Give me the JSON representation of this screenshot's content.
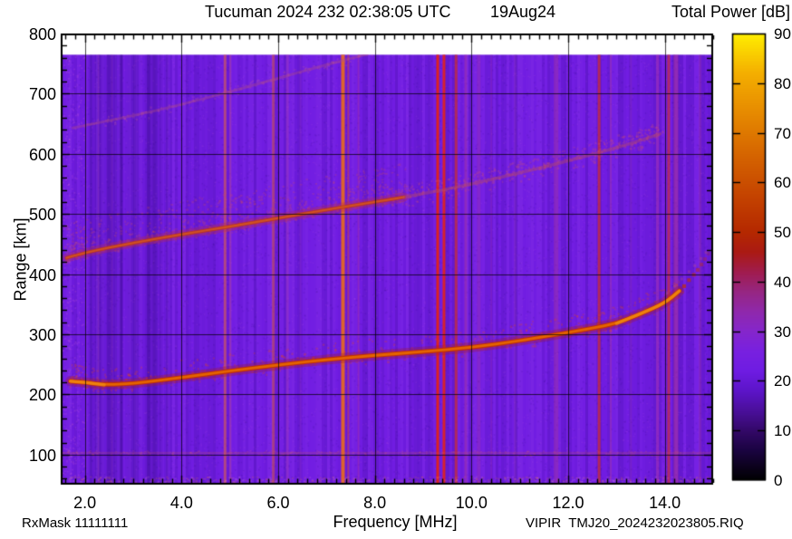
{
  "header": {
    "title": "Tucuman 2024 232 02:38:05 UTC",
    "date_label": "19Aug24",
    "colorbar_title": "Total Power [dB]"
  },
  "footer": {
    "rx_mask": "RxMask 11111111",
    "source_file": "VIPIR  TMJ20_2024232023805.RIQ"
  },
  "chart_data": {
    "type": "heatmap",
    "subtype": "ionogram",
    "title": "Tucuman 2024 232 02:38:05 UTC  19Aug24",
    "station": "Tucuman",
    "xlabel": "Frequency [MHz]",
    "ylabel": "Range [km]",
    "x_axis": {
      "range": [
        1.5,
        15.0
      ],
      "major_ticks": [
        2.0,
        4.0,
        6.0,
        8.0,
        10.0,
        12.0,
        14.0
      ],
      "tick_labels": [
        "2.0",
        "4.0",
        "6.0",
        "8.0",
        "10.0",
        "12.0",
        "14.0"
      ],
      "minor_step": 0.2
    },
    "y_axis": {
      "range": [
        50,
        800
      ],
      "major_ticks": [
        100,
        200,
        300,
        400,
        500,
        600,
        700,
        800
      ],
      "tick_labels": [
        "100",
        "200",
        "300",
        "400",
        "500",
        "600",
        "700",
        "800"
      ],
      "minor_step": 20
    },
    "colorbar": {
      "label": "Total Power [dB]",
      "range": [
        0,
        90
      ],
      "ticks": [
        0,
        10,
        20,
        30,
        40,
        50,
        60,
        70,
        80,
        90
      ],
      "tick_labels": [
        "0",
        "10",
        "20",
        "30",
        "40",
        "50",
        "60",
        "70",
        "80",
        "90"
      ],
      "stops": [
        [
          0,
          "#000000"
        ],
        [
          6,
          "#1a0340"
        ],
        [
          10,
          "#330868"
        ],
        [
          14,
          "#4a0f9a"
        ],
        [
          18,
          "#5c14c8"
        ],
        [
          22,
          "#6e1ce2"
        ],
        [
          26,
          "#7820e0"
        ],
        [
          30,
          "#8526cc"
        ],
        [
          34,
          "#8f28ac"
        ],
        [
          38,
          "#962682"
        ],
        [
          42,
          "#a01c4e"
        ],
        [
          46,
          "#aa1a14"
        ],
        [
          50,
          "#b42800"
        ],
        [
          58,
          "#c64600"
        ],
        [
          66,
          "#d66600"
        ],
        [
          74,
          "#e68a00"
        ],
        [
          82,
          "#f4ae00"
        ],
        [
          90,
          "#ffee00"
        ]
      ]
    },
    "grid": true,
    "background_db": 23,
    "data_max_range_km": 765,
    "e_region_line_km": 103,
    "traces": [
      {
        "name": "f-region-echo-1st-hop",
        "points": [
          [
            1.7,
            222
          ],
          [
            2.0,
            220
          ],
          [
            2.4,
            216
          ],
          [
            3.0,
            218
          ],
          [
            4.0,
            228
          ],
          [
            5.0,
            239
          ],
          [
            6.0,
            249
          ],
          [
            7.0,
            258
          ],
          [
            8.0,
            265
          ],
          [
            9.0,
            271
          ],
          [
            10.0,
            278
          ],
          [
            11.0,
            289
          ],
          [
            12.0,
            303
          ],
          [
            12.5,
            310
          ],
          [
            13.0,
            318
          ],
          [
            13.5,
            334
          ],
          [
            14.0,
            352
          ],
          [
            14.3,
            372
          ]
        ],
        "color": "#c23000",
        "core_color": "#e86a00",
        "glow_color": "rgba(160,25,50,0.35)",
        "width": 5,
        "alpha": 0.95,
        "bright_segments": [
          [
            1.7,
            2.9
          ],
          [
            12.6,
            14.3
          ]
        ],
        "tail_dots": [
          [
            14.4,
            380
          ],
          [
            14.5,
            390
          ],
          [
            14.6,
            399
          ],
          [
            14.68,
            407
          ],
          [
            14.76,
            416
          ],
          [
            14.83,
            425
          ],
          [
            14.9,
            434
          ]
        ],
        "speckle": {
          "count": 550,
          "up": 20,
          "down": 8,
          "color": "rgba(220,70,40,0.3)"
        }
      },
      {
        "name": "f-region-echo-2nd-hop",
        "points": [
          [
            1.62,
            427
          ],
          [
            2.0,
            436
          ],
          [
            3.0,
            452
          ],
          [
            4.0,
            466
          ],
          [
            5.0,
            479
          ],
          [
            6.0,
            493
          ],
          [
            7.0,
            507
          ],
          [
            8.0,
            520
          ],
          [
            8.6,
            528
          ]
        ],
        "color": "#c03a10",
        "core_color": "#da5c20",
        "glow_color": "rgba(180,40,80,0.35)",
        "width": 4,
        "alpha": 0.8,
        "speckle": {
          "count": 800,
          "up": 38,
          "down": 6,
          "color": "rgba(205,75,100,0.25)"
        }
      },
      {
        "name": "f-region-echo-2nd-hop-faint",
        "points": [
          [
            8.6,
            528
          ],
          [
            9.5,
            541
          ],
          [
            10.5,
            559
          ],
          [
            11.5,
            578
          ],
          [
            12.5,
            599
          ],
          [
            13.3,
            617
          ],
          [
            13.9,
            633
          ]
        ],
        "color": "#b44868",
        "width": 3.5,
        "alpha": 0.45,
        "speckle": {
          "count": 400,
          "up": 14,
          "down": 10,
          "color": "rgba(200,80,120,0.28)"
        }
      },
      {
        "name": "f-region-echo-3rd-hop-faint",
        "points": [
          [
            1.75,
            643
          ],
          [
            3.0,
            663
          ],
          [
            4.0,
            682
          ],
          [
            5.0,
            703
          ],
          [
            6.0,
            726
          ],
          [
            7.0,
            748
          ],
          [
            7.85,
            766
          ]
        ],
        "color": "#b04c80",
        "width": 3,
        "alpha": 0.38,
        "speckle": {
          "count": 160,
          "up": 6,
          "down": 6,
          "color": "rgba(200,95,150,0.22)"
        }
      },
      {
        "name": "x-mode-branch-dots",
        "dots": [
          [
            14.05,
            368
          ],
          [
            14.2,
            380
          ],
          [
            14.35,
            392
          ],
          [
            14.5,
            404
          ],
          [
            14.62,
            414
          ],
          [
            14.75,
            426
          ],
          [
            14.85,
            436
          ]
        ],
        "color": "#c05575",
        "width": 3,
        "alpha": 0.33
      }
    ],
    "rfi_lines": [
      {
        "f": 2.28,
        "w": 2,
        "color": "#b048b0",
        "alpha": 0.2
      },
      {
        "f": 2.56,
        "w": 2,
        "color": "#b048b0",
        "alpha": 0.15
      },
      {
        "f": 4.9,
        "w": 3,
        "color": "#e06038",
        "alpha": 0.55
      },
      {
        "f": 5.01,
        "w": 2,
        "color": "#d05060",
        "alpha": 0.3
      },
      {
        "f": 5.9,
        "w": 3,
        "color": "#e06038",
        "alpha": 0.5
      },
      {
        "f": 6.19,
        "w": 3,
        "color": "#b040a0",
        "alpha": 0.3
      },
      {
        "f": 6.46,
        "w": 2,
        "color": "#b040a0",
        "alpha": 0.15
      },
      {
        "f": 7.34,
        "w": 4,
        "color": "#f07010",
        "alpha": 0.85
      },
      {
        "f": 7.45,
        "w": 2,
        "color": "#e05030",
        "alpha": 0.45
      },
      {
        "f": 7.66,
        "w": 2,
        "color": "#c04080",
        "alpha": 0.3
      },
      {
        "f": 9.3,
        "w": 3,
        "color": "#e82410",
        "alpha": 0.9
      },
      {
        "f": 9.43,
        "w": 3,
        "color": "#e82410",
        "alpha": 0.85
      },
      {
        "f": 9.68,
        "w": 3,
        "color": "#dd3311",
        "alpha": 0.6
      },
      {
        "f": 9.88,
        "w": 3,
        "color": "#b03890",
        "alpha": 0.4
      },
      {
        "f": 10.15,
        "w": 4,
        "color": "#b03890",
        "alpha": 0.25
      },
      {
        "f": 10.41,
        "w": 2,
        "color": "#b03890",
        "alpha": 0.2
      },
      {
        "f": 10.9,
        "w": 3,
        "color": "#a840a8",
        "alpha": 0.18
      },
      {
        "f": 11.75,
        "w": 5,
        "color": "#b03890",
        "alpha": 0.35
      },
      {
        "f": 12.64,
        "w": 3,
        "color": "#d83018",
        "alpha": 0.65
      },
      {
        "f": 12.88,
        "w": 2,
        "color": "#b03890",
        "alpha": 0.35
      },
      {
        "f": 13.3,
        "w": 2,
        "color": "#a840a8",
        "alpha": 0.2
      },
      {
        "f": 13.85,
        "w": 3,
        "color": "#b03890",
        "alpha": 0.4
      },
      {
        "f": 14.08,
        "w": 3,
        "color": "#dd3322",
        "alpha": 0.6
      },
      {
        "f": 14.23,
        "w": 5,
        "color": "#b03890",
        "alpha": 0.5
      },
      {
        "f": 14.73,
        "w": 3,
        "color": "#b03890",
        "alpha": 0.25
      }
    ]
  }
}
